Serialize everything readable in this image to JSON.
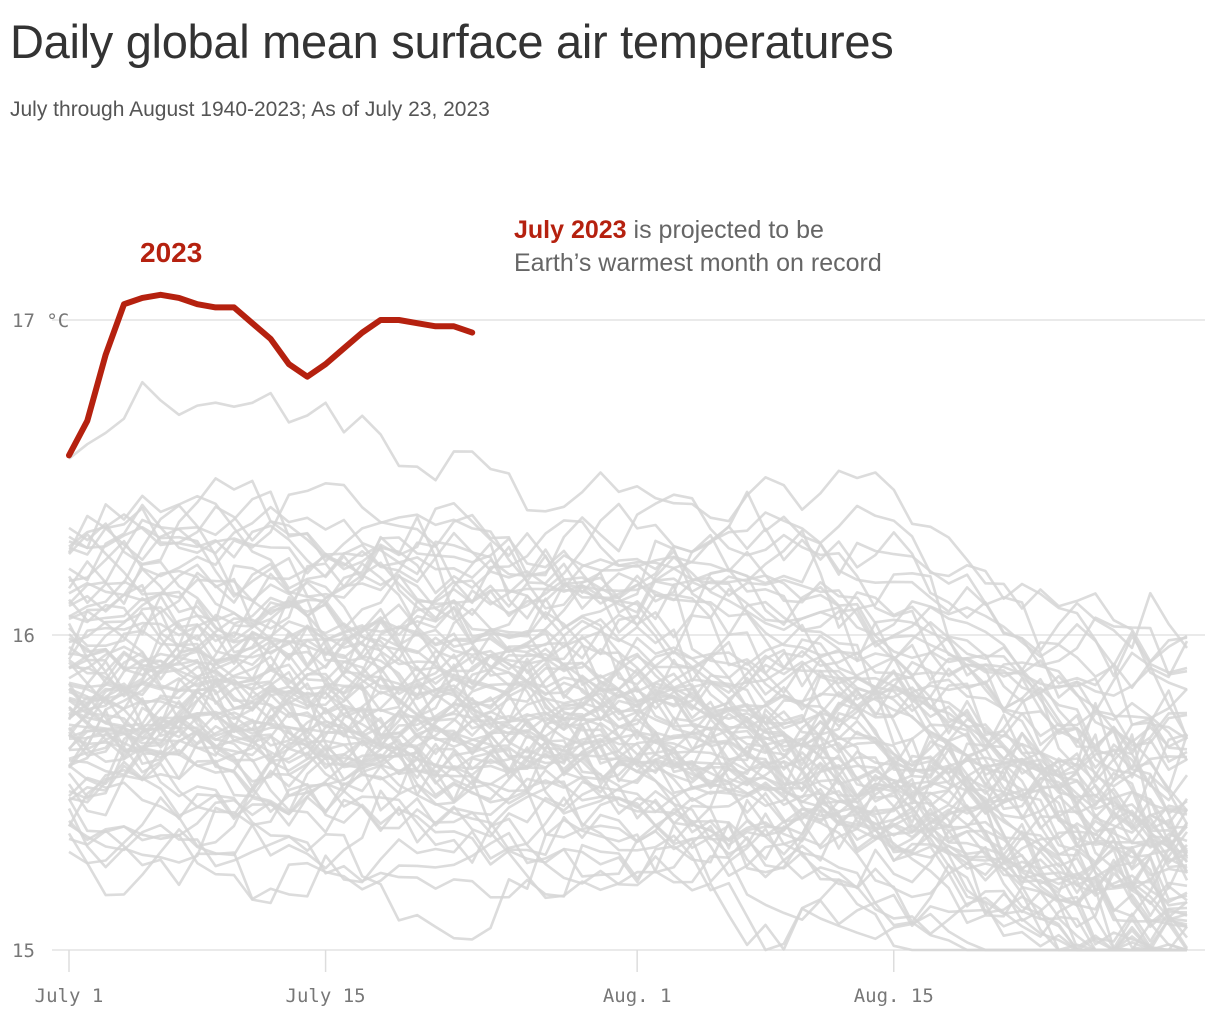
{
  "title": "Daily global mean surface air temperatures",
  "subtitle": "July through August 1940-2023; As of July 23, 2023",
  "colors": {
    "highlight": "#b5210f",
    "background_series": "#d6d6d6",
    "grid": "#dddddd",
    "text": "#333333",
    "muted": "#666666"
  },
  "chart_data": {
    "type": "line",
    "title": "Daily global mean surface air temperatures",
    "subtitle": "July through August 1940-2023; As of July 23, 2023",
    "x_axis": {
      "unit": "day of July–August",
      "ticks": [
        {
          "day": 1,
          "label": "July 1"
        },
        {
          "day": 15,
          "label": "July 15"
        },
        {
          "day": 32,
          "label": "Aug. 1"
        },
        {
          "day": 46,
          "label": "Aug. 15"
        }
      ],
      "range": [
        1,
        62
      ]
    },
    "y_axis": {
      "unit": "°C",
      "ticks": [
        {
          "value": 15,
          "label": "15"
        },
        {
          "value": 16,
          "label": "16"
        },
        {
          "value": 17,
          "label": "17 °C"
        }
      ],
      "range": [
        15,
        17
      ]
    },
    "grid": true,
    "highlight_series": {
      "name": "2023",
      "day": [
        1,
        2,
        3,
        4,
        5,
        6,
        7,
        8,
        9,
        10,
        11,
        12,
        13,
        14,
        15,
        16,
        17,
        18,
        19,
        20,
        21,
        22,
        23
      ],
      "values": [
        16.57,
        16.68,
        16.89,
        17.05,
        17.07,
        17.08,
        17.07,
        17.05,
        17.04,
        17.04,
        16.99,
        16.94,
        16.86,
        16.82,
        16.86,
        16.91,
        16.96,
        17.0,
        17.0,
        16.99,
        16.98,
        16.98,
        16.96
      ]
    },
    "background_series": {
      "description": "1940-2022 daily values (gray)",
      "reference_shape": {
        "day": [
          1,
          8,
          15,
          22,
          29,
          36,
          43,
          50,
          55,
          62
        ],
        "values": [
          15.85,
          15.88,
          15.86,
          15.85,
          15.83,
          15.78,
          15.72,
          15.62,
          15.5,
          15.42
        ]
      },
      "spread_values": [
        15.2,
        16.75
      ]
    },
    "annotations": [
      {
        "label": "2023",
        "type": "series_label"
      },
      {
        "lead": "July 2023",
        "text_line1": " is projected to be",
        "text_line2": "Earth’s warmest month on record"
      }
    ]
  }
}
